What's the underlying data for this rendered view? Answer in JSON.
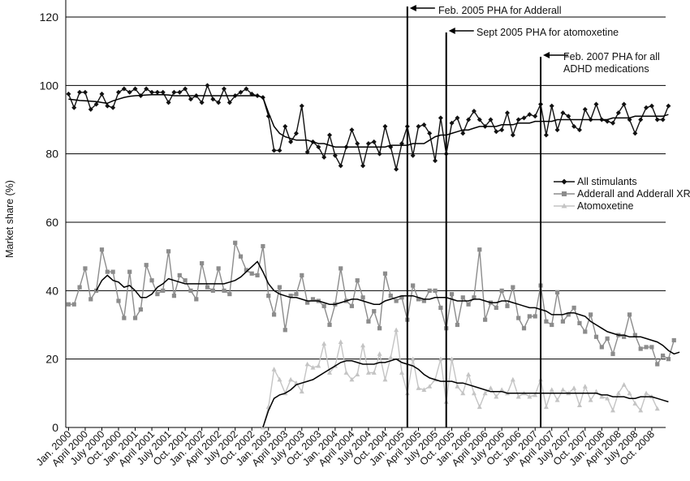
{
  "chart_data": {
    "type": "line",
    "ylabel": "Market share (%)",
    "ylim": [
      0,
      120
    ],
    "yticks": [
      "0",
      "20",
      "40",
      "60",
      "80",
      "100",
      "120"
    ],
    "x_tick_labels": [
      "Jan. 2000",
      "April 2000",
      "July 2000",
      "Oct. 2000",
      "Jan. 2001",
      "April 2001",
      "July 2001",
      "Oct. 2001",
      "Jan. 2002",
      "April 2002",
      "July 2002",
      "Oct. 2002",
      "Jan. 2003",
      "April 2003",
      "July 2003",
      "Oct. 2003",
      "Jan. 2004",
      "April 2004",
      "July 2004",
      "Oct. 2004",
      "Jan. 2005",
      "April 2005",
      "July 2005",
      "Oct. 2005",
      "Jan. 2006",
      "April 2006",
      "July 2006",
      "Oct. 2006",
      "Jan. 2007",
      "April 2007",
      "July 2007",
      "Oct. 2007",
      "Jan. 2008",
      "April 2008",
      "July 2008",
      "Oct. 2008"
    ],
    "grid": "horizontal",
    "legend_position": "right-middle",
    "series": [
      {
        "name": "All stimulants",
        "color": "#111111",
        "marker": "diamond",
        "values": [
          97.5,
          93.5,
          98,
          98,
          93,
          94.5,
          97.5,
          94,
          93.5,
          98,
          99,
          98,
          99,
          97,
          99,
          98,
          98,
          98,
          95,
          98,
          98,
          99,
          96,
          97,
          95,
          100,
          96,
          95,
          99,
          95,
          97,
          98,
          99,
          97.5,
          97,
          96.5,
          91,
          81,
          81,
          88,
          83.5,
          86,
          94,
          80.5,
          83.5,
          82,
          79,
          85.5,
          79.5,
          76.5,
          82,
          87,
          83,
          76.5,
          83,
          83.5,
          80,
          88,
          82,
          75.5,
          83,
          88,
          79.5,
          88,
          88.5,
          86,
          78,
          90.5,
          80,
          89,
          90.5,
          86,
          90,
          92.5,
          90,
          88,
          90,
          86.5,
          87,
          92,
          85.5,
          90,
          90.5,
          91.5,
          91,
          94.5,
          85.5,
          94,
          87,
          92,
          91,
          88,
          87,
          93,
          90,
          94.5,
          90,
          89.5,
          89,
          92,
          94.5,
          90,
          86,
          90,
          93.5,
          94,
          90,
          90,
          94
        ],
        "trend": [
          96,
          95.8,
          95.6,
          95.5,
          95.4,
          95.3,
          95,
          94.8,
          95.5,
          96,
          96.5,
          96.8,
          97,
          97.1,
          97.2,
          97.3,
          97.3,
          97.3,
          97.2,
          97,
          97,
          97,
          97,
          97,
          97,
          97,
          97,
          97,
          97,
          97,
          97,
          97,
          97,
          97,
          97,
          96.5,
          92,
          88,
          86,
          85,
          84.5,
          84,
          84,
          84,
          83.5,
          83,
          83,
          82.5,
          82,
          82,
          82,
          82,
          82,
          82,
          82,
          82,
          82,
          82,
          82.5,
          82.5,
          82.5,
          82.5,
          83,
          83,
          83,
          84,
          85,
          85.5,
          85.5,
          86,
          86.5,
          87,
          87,
          87.5,
          88,
          88,
          88,
          88,
          88.5,
          88.5,
          88.5,
          89,
          89,
          89,
          89.5,
          89.5,
          89.5,
          89.5,
          90,
          90,
          90,
          90,
          90,
          90,
          90,
          90,
          90,
          90,
          90.5,
          90.5,
          90.5,
          90.5,
          91,
          91,
          91,
          91,
          91,
          91,
          91.5
        ]
      },
      {
        "name": "Adderall and Adderall XR",
        "color": "#8c8c8c",
        "marker": "square",
        "values": [
          36,
          36,
          41,
          46.5,
          37.5,
          40,
          52,
          45.5,
          45.5,
          37,
          32,
          45.5,
          32,
          34.5,
          47.5,
          43,
          39,
          40,
          51.5,
          38.5,
          44.5,
          43,
          40,
          37.5,
          48,
          41,
          40,
          46.5,
          40,
          39,
          54,
          50,
          46,
          45,
          44.5,
          53,
          38.5,
          33,
          41,
          28.5,
          38.5,
          39,
          44.5,
          36.5,
          37.5,
          37,
          35.5,
          30,
          36,
          46.5,
          37,
          35.5,
          43,
          38,
          31,
          34,
          29,
          45,
          38.5,
          37,
          38,
          31.5,
          41.5,
          37.5,
          37,
          40,
          40,
          35,
          29,
          39,
          30,
          38,
          36,
          38,
          52,
          31.5,
          36.5,
          35,
          40,
          35.5,
          41,
          32,
          29,
          32.5,
          32.5,
          41.5,
          31,
          30,
          39.5,
          31,
          33,
          35,
          30.5,
          28,
          33,
          26.5,
          23.5,
          26,
          21.5,
          27,
          26.5,
          33,
          27,
          23,
          23.5,
          23.5,
          18.5,
          21,
          20,
          25.5
        ],
        "trend": [
          null,
          null,
          null,
          null,
          null,
          40,
          43,
          44.5,
          43,
          42.5,
          41,
          41.5,
          40,
          38,
          38,
          39,
          41,
          42,
          43.5,
          43,
          42.5,
          42,
          42,
          42,
          42,
          42,
          42,
          42,
          42,
          42.5,
          43,
          44,
          45.5,
          47,
          48.5,
          45.5,
          42,
          40,
          39,
          38.5,
          38,
          38,
          37.5,
          37,
          37,
          37,
          36.5,
          36,
          36,
          36.5,
          37,
          37.5,
          37.5,
          37,
          36.5,
          36,
          36,
          37,
          37.5,
          38,
          38.5,
          38.5,
          38.5,
          38,
          37.5,
          37.5,
          38,
          38,
          38,
          37.5,
          37,
          37,
          37,
          37.5,
          37.5,
          37,
          36.5,
          36.5,
          37,
          37,
          36.5,
          36,
          35.5,
          35,
          35,
          34.5,
          34,
          33,
          33,
          33,
          33.5,
          33.5,
          33,
          32.5,
          31,
          30,
          29,
          28,
          27.5,
          27,
          27,
          26.5,
          26.5,
          26.5,
          26,
          25.5,
          25,
          24,
          22.5,
          21.5,
          22
        ]
      },
      {
        "name": "Atomoxetine",
        "color": "#c4c4c4",
        "marker": "triangle",
        "values": [
          null,
          null,
          null,
          null,
          null,
          null,
          null,
          null,
          null,
          null,
          null,
          null,
          null,
          null,
          null,
          null,
          null,
          null,
          null,
          null,
          null,
          null,
          null,
          null,
          null,
          null,
          null,
          null,
          null,
          null,
          null,
          null,
          null,
          null,
          null,
          0,
          6,
          17,
          14,
          10,
          14,
          13,
          10.5,
          18.5,
          17.5,
          18,
          24.5,
          16,
          18,
          25,
          16,
          14,
          15.5,
          24,
          16,
          16,
          21.5,
          14,
          20.5,
          28.5,
          16,
          10,
          20,
          11.5,
          11,
          12,
          14,
          20,
          7.5,
          20,
          12,
          10,
          15.5,
          10,
          6,
          10,
          11.5,
          9,
          11,
          10,
          14,
          9,
          10,
          9,
          9.5,
          14,
          6,
          11,
          8,
          11,
          10,
          11.5,
          6.5,
          12,
          8,
          10.5,
          9,
          8.5,
          5,
          10,
          12.5,
          10,
          7,
          5,
          10,
          9,
          5.5
        ],
        "trend": [
          null,
          null,
          null,
          null,
          null,
          null,
          null,
          null,
          null,
          null,
          null,
          null,
          null,
          null,
          null,
          null,
          null,
          null,
          null,
          null,
          null,
          null,
          null,
          null,
          null,
          null,
          null,
          null,
          null,
          null,
          null,
          null,
          null,
          null,
          null,
          0,
          5,
          8.5,
          9.5,
          10,
          11,
          12.5,
          13,
          13.5,
          14,
          15,
          16,
          17,
          18,
          19,
          19.5,
          19.5,
          19,
          18.5,
          18.5,
          18.5,
          19,
          19,
          19.5,
          20,
          19,
          18.5,
          18,
          17,
          15.5,
          14.5,
          14,
          13.5,
          13.5,
          13.5,
          13,
          13,
          12.5,
          12,
          11.5,
          11,
          10.5,
          10.5,
          10.5,
          10,
          10,
          10,
          10,
          10,
          10,
          10,
          10,
          10,
          10,
          10,
          10,
          10,
          10,
          10,
          10,
          10,
          9.5,
          9.5,
          9,
          9,
          9,
          8.5,
          8.5,
          9,
          9,
          9,
          8.5,
          8,
          7.5
        ]
      }
    ],
    "vertical_markers": [
      {
        "index": 61,
        "label": "Feb. 2005 PHA for Adderall"
      },
      {
        "index": 68,
        "label": "Sept 2005 PHA for atomoxetine"
      },
      {
        "index": 85,
        "label": "Feb. 2007 PHA for all ADHD medications"
      }
    ]
  },
  "annotations": {
    "marker1_line1": "Feb. 2005 PHA for Adderall",
    "marker2_line1": "Sept 2005 PHA for atomoxetine",
    "marker3_line1": "Feb. 2007 PHA for all",
    "marker3_line2": "ADHD medications"
  },
  "legend": {
    "item1": "All stimulants",
    "item2": "Adderall and Adderall XR",
    "item3": "Atomoxetine"
  }
}
